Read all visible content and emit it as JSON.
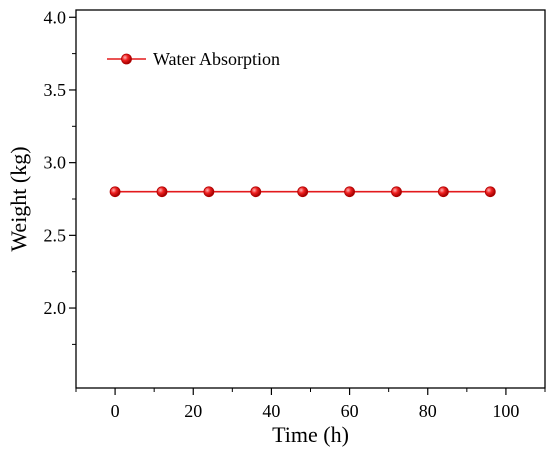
{
  "chart_data": {
    "type": "line",
    "title": "",
    "xlabel": "Time (h)",
    "ylabel": "Weight (kg)",
    "xlim": [
      -10,
      110
    ],
    "ylim": [
      1.45,
      4.05
    ],
    "xticks": [
      0,
      20,
      40,
      60,
      80,
      100
    ],
    "yticks": [
      2.0,
      2.5,
      3.0,
      3.5,
      4.0
    ],
    "xtick_labels": [
      "0",
      "20",
      "40",
      "60",
      "80",
      "100"
    ],
    "ytick_labels": [
      "2.0",
      "2.5",
      "3.0",
      "3.5",
      "4.0"
    ],
    "grid": false,
    "legend": {
      "position": "top-left"
    },
    "series": [
      {
        "name": "Water Absorption",
        "color": "#e31a1c",
        "x": [
          0,
          12,
          24,
          36,
          48,
          60,
          72,
          84,
          96
        ],
        "y": [
          2.8,
          2.8,
          2.8,
          2.8,
          2.8,
          2.8,
          2.8,
          2.8,
          2.8
        ]
      }
    ]
  }
}
